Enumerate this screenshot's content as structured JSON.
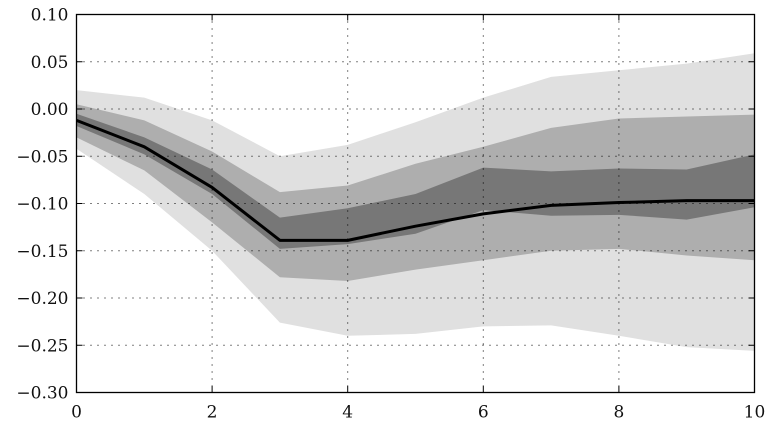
{
  "chart_data": {
    "type": "area",
    "title": "",
    "xlabel": "",
    "ylabel": "",
    "x": [
      0,
      1,
      2,
      3,
      4,
      5,
      6,
      7,
      8,
      9,
      10
    ],
    "xlim": [
      0,
      10
    ],
    "ylim": [
      -0.3,
      0.1
    ],
    "xticks": [
      0,
      2,
      4,
      6,
      8,
      10
    ],
    "xtick_labels": [
      "0",
      "2",
      "4",
      "6",
      "8",
      "10"
    ],
    "yticks": [
      0.1,
      0.05,
      0.0,
      -0.05,
      -0.1,
      -0.15,
      -0.2,
      -0.25,
      -0.3
    ],
    "ytick_labels": [
      "0.10",
      "0.05",
      "0.00",
      "−0.05",
      "−0.10",
      "−0.15",
      "−0.20",
      "−0.25",
      "−0.30"
    ],
    "grid": true,
    "legend": "none",
    "bands": [
      {
        "color": "#e0e0e0",
        "upper": [
          0.02,
          0.012,
          -0.012,
          -0.05,
          -0.038,
          -0.014,
          0.012,
          0.034,
          0.041,
          0.048,
          0.059
        ],
        "lower": [
          -0.042,
          -0.09,
          -0.15,
          -0.226,
          -0.24,
          -0.238,
          -0.23,
          -0.229,
          -0.24,
          -0.252,
          -0.256
        ]
      },
      {
        "color": "#aeaeae",
        "upper": [
          0.005,
          -0.012,
          -0.045,
          -0.088,
          -0.081,
          -0.058,
          -0.04,
          -0.02,
          -0.01,
          -0.008,
          -0.006
        ],
        "lower": [
          -0.03,
          -0.065,
          -0.12,
          -0.178,
          -0.182,
          -0.17,
          -0.16,
          -0.15,
          -0.148,
          -0.155,
          -0.16
        ]
      },
      {
        "color": "#777777",
        "upper": [
          -0.005,
          -0.03,
          -0.064,
          -0.115,
          -0.105,
          -0.09,
          -0.062,
          -0.066,
          -0.063,
          -0.064,
          -0.048
        ],
        "lower": [
          -0.018,
          -0.048,
          -0.09,
          -0.148,
          -0.143,
          -0.132,
          -0.107,
          -0.113,
          -0.112,
          -0.117,
          -0.104
        ]
      }
    ],
    "series": [
      {
        "color": "#000000",
        "values": [
          -0.012,
          -0.04,
          -0.083,
          -0.139,
          -0.139,
          -0.124,
          -0.111,
          -0.102,
          -0.099,
          -0.097,
          -0.097
        ]
      }
    ]
  }
}
